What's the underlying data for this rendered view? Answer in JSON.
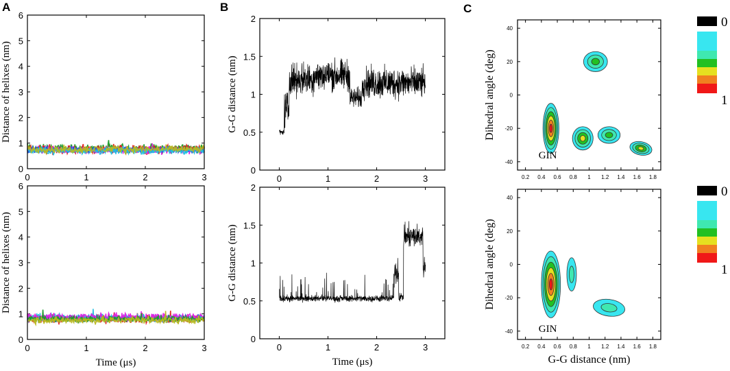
{
  "panels": {
    "A": "A",
    "B": "B",
    "C": "C"
  },
  "chart_data": [
    {
      "type": "line",
      "panel": "A-top",
      "title": "",
      "xlabel": "",
      "ylabel": "Distance of helixes (nm)",
      "xlim": [
        0,
        3
      ],
      "ylim": [
        0,
        6
      ],
      "xticks": [
        0,
        1,
        2,
        3
      ],
      "yticks": [
        0,
        1,
        2,
        3,
        4,
        5,
        6
      ],
      "series": [
        {
          "name": "green",
          "color": "#1a9b2a",
          "mean": 0.8,
          "amp": 0.22
        },
        {
          "name": "red",
          "color": "#e02020",
          "mean": 0.75,
          "amp": 0.25
        },
        {
          "name": "magenta",
          "color": "#e020e0",
          "mean": 0.72,
          "amp": 0.2
        },
        {
          "name": "blue",
          "color": "#2050e0",
          "mean": 0.74,
          "amp": 0.18
        },
        {
          "name": "cyan",
          "color": "#20c0e0",
          "mean": 0.7,
          "amp": 0.2
        },
        {
          "name": "olive",
          "color": "#b8b820",
          "mean": 0.76,
          "amp": 0.2
        }
      ]
    },
    {
      "type": "line",
      "panel": "A-bottom",
      "title": "",
      "xlabel": "Time (μs)",
      "ylabel": "Distance of helixes (nm)",
      "xlim": [
        0,
        3
      ],
      "ylim": [
        0,
        6
      ],
      "xticks": [
        0,
        1,
        2,
        3
      ],
      "yticks": [
        0,
        1,
        2,
        3,
        4,
        5,
        6
      ],
      "series": [
        {
          "name": "red",
          "color": "#e02020",
          "mean": 0.8,
          "amp": 0.22
        },
        {
          "name": "blue",
          "color": "#2050e0",
          "mean": 0.82,
          "amp": 0.2
        },
        {
          "name": "cyan",
          "color": "#20c0e0",
          "mean": 0.85,
          "amp": 0.22
        },
        {
          "name": "magenta",
          "color": "#e020e0",
          "mean": 0.88,
          "amp": 0.2
        },
        {
          "name": "green",
          "color": "#1a9b2a",
          "mean": 0.8,
          "amp": 0.18
        },
        {
          "name": "olive",
          "color": "#b8b820",
          "mean": 0.75,
          "amp": 0.2
        }
      ]
    },
    {
      "type": "line",
      "panel": "B-top",
      "xlabel": "",
      "ylabel": "G-G distance (nm)",
      "xlim": [
        -0.4,
        3.4
      ],
      "ylim": [
        0,
        2
      ],
      "xticks": [
        0,
        1,
        2,
        3
      ],
      "yticks": [
        0,
        0.5,
        1,
        1.5,
        2
      ],
      "segments": [
        {
          "t0": 0.0,
          "t1": 0.1,
          "mean": 0.5,
          "amp": 0.05
        },
        {
          "t0": 0.1,
          "t1": 0.2,
          "mean": 0.8,
          "amp": 0.35
        },
        {
          "t0": 0.2,
          "t1": 0.7,
          "mean": 1.2,
          "amp": 0.3
        },
        {
          "t0": 0.7,
          "t1": 1.45,
          "mean": 1.25,
          "amp": 0.3
        },
        {
          "t0": 1.45,
          "t1": 1.7,
          "mean": 0.95,
          "amp": 0.2
        },
        {
          "t0": 1.7,
          "t1": 3.0,
          "mean": 1.15,
          "amp": 0.3
        }
      ],
      "color": "#000000"
    },
    {
      "type": "line",
      "panel": "B-bottom",
      "xlabel": "Time (μs)",
      "ylabel": "G-G distance (nm)",
      "xlim": [
        -0.4,
        3.4
      ],
      "ylim": [
        0,
        2
      ],
      "xticks": [
        0,
        1,
        2,
        3
      ],
      "yticks": [
        0,
        0.5,
        1,
        1.5,
        2
      ],
      "segments": [
        {
          "t0": 0.0,
          "t1": 2.35,
          "mean": 0.53,
          "amp": 0.06
        },
        {
          "t0": 2.35,
          "t1": 2.45,
          "mean": 0.9,
          "amp": 0.3
        },
        {
          "t0": 2.45,
          "t1": 2.55,
          "mean": 0.55,
          "amp": 0.08
        },
        {
          "t0": 2.55,
          "t1": 2.95,
          "mean": 1.35,
          "amp": 0.22
        },
        {
          "t0": 2.95,
          "t1": 3.0,
          "mean": 0.95,
          "amp": 0.2
        }
      ],
      "color": "#000000"
    },
    {
      "type": "heatmap",
      "panel": "C-top",
      "xlabel": "",
      "ylabel": "Dihedral angle (deg)",
      "xlim": [
        0.1,
        1.9
      ],
      "ylim": [
        -45,
        45
      ],
      "xticks": [
        0.2,
        0.4,
        0.6,
        0.8,
        1.0,
        1.2,
        1.4,
        1.6,
        1.8
      ],
      "yticks": [
        -40,
        -20,
        0,
        20,
        40
      ],
      "annotation": "GIN",
      "blobs": [
        {
          "x": 0.52,
          "y": -20,
          "rx": 0.1,
          "ry": 15,
          "peak": 1.0
        },
        {
          "x": 1.08,
          "y": 20,
          "rx": 0.15,
          "ry": 6,
          "peak": 0.45
        },
        {
          "x": 0.92,
          "y": -26,
          "rx": 0.13,
          "ry": 7,
          "peak": 0.6
        },
        {
          "x": 1.25,
          "y": -24,
          "rx": 0.14,
          "ry": 5,
          "peak": 0.55
        },
        {
          "x": 1.65,
          "y": -32,
          "rx": 0.14,
          "ry": 4,
          "peak": 0.65
        }
      ]
    },
    {
      "type": "heatmap",
      "panel": "C-bottom",
      "xlabel": "G-G distance (nm)",
      "ylabel": "Dihedral angle (deg)",
      "xlim": [
        0.1,
        1.9
      ],
      "ylim": [
        -45,
        45
      ],
      "xticks": [
        0.2,
        0.4,
        0.6,
        0.8,
        1.0,
        1.2,
        1.4,
        1.6,
        1.8
      ],
      "yticks": [
        -40,
        -20,
        0,
        20,
        40
      ],
      "annotation": "GIN",
      "blobs": [
        {
          "x": 0.52,
          "y": -12,
          "rx": 0.12,
          "ry": 20,
          "peak": 1.0
        },
        {
          "x": 0.78,
          "y": -6,
          "rx": 0.06,
          "ry": 10,
          "peak": 0.35
        },
        {
          "x": 1.25,
          "y": -26,
          "rx": 0.2,
          "ry": 5,
          "peak": 0.35
        }
      ]
    }
  ],
  "colorbar": {
    "min_label": "0",
    "max_label": "1",
    "colors": [
      "#000000",
      "#ffffff",
      "#38e6f0",
      "#3fe8b0",
      "#22c022",
      "#e6e020",
      "#f08020",
      "#f01818"
    ]
  }
}
